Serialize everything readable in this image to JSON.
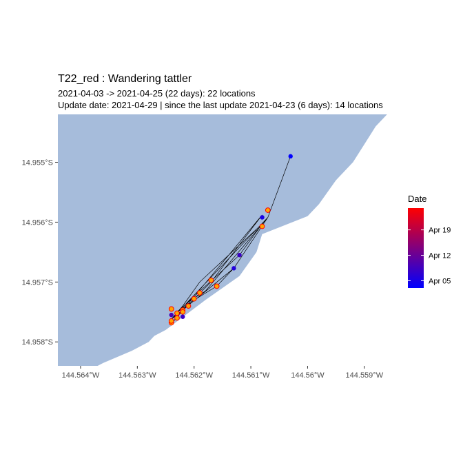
{
  "title": "T22_red  :  Wandering tattler",
  "subtitle_line1": "2021-04-03 -> 2021-04-25 (22 days): 22 locations",
  "subtitle_line2": "Update date: 2021-04-29 |  since the last update 2021-04-23 (6 days): 14 locations",
  "colors": {
    "land": "#a6bcdb",
    "track": "#000000",
    "recent_point_fill": "#ffa500",
    "recent_point_border": "#ff0000",
    "gradient_start": "#0000ff",
    "gradient_end": "#ff0000"
  },
  "chart_data": {
    "type": "scatter",
    "map": true,
    "x_label": "",
    "y_label": "",
    "xlim": [
      -144.5644,
      -144.5585
    ],
    "ylim": [
      -14.9584,
      -14.9542
    ],
    "x_ticks": [
      -144.564,
      -144.563,
      -144.562,
      -144.561,
      -144.56,
      -144.559
    ],
    "x_tick_labels": [
      "144.564°W",
      "144.563°W",
      "144.562°W",
      "144.561°W",
      "144.56°W",
      "144.559°W"
    ],
    "y_ticks": [
      -14.955,
      -14.956,
      -14.957,
      -14.958
    ],
    "y_tick_labels": [
      "14.955°S",
      "14.956°S",
      "14.957°S",
      "14.958°S"
    ],
    "grid": false,
    "coastline": [
      [
        -144.5644,
        -14.9584
      ],
      [
        -144.5637,
        -14.9584
      ],
      [
        -144.5636,
        -14.95835
      ],
      [
        -144.5631,
        -14.95815
      ],
      [
        -144.5628,
        -14.958
      ],
      [
        -144.5627,
        -14.9579
      ],
      [
        -144.5625,
        -14.9578
      ],
      [
        -144.5618,
        -14.9573
      ],
      [
        -144.5612,
        -14.9569
      ],
      [
        -144.5609,
        -14.9565
      ],
      [
        -144.5608,
        -14.9562
      ],
      [
        -144.56,
        -14.9559
      ],
      [
        -144.5598,
        -14.9557
      ],
      [
        -144.5595,
        -14.9553
      ],
      [
        -144.5592,
        -14.955
      ],
      [
        -144.559,
        -14.9547
      ],
      [
        -144.5588,
        -14.9544
      ],
      [
        -144.5586,
        -14.9542
      ],
      [
        -144.5644,
        -14.9542
      ]
    ],
    "track": [
      [
        -144.5603,
        -14.9549
      ],
      [
        -144.5607,
        -14.95592
      ],
      [
        -144.5613,
        -14.95677
      ],
      [
        -144.5616,
        -14.95707
      ],
      [
        -144.562,
        -14.9573
      ],
      [
        -144.5623,
        -14.9575
      ],
      [
        -144.5612,
        -14.95655
      ],
      [
        -144.5608,
        -14.95603
      ],
      [
        -144.5619,
        -14.957
      ],
      [
        -144.5622,
        -14.9574
      ],
      [
        -144.5624,
        -14.95762
      ],
      [
        -144.5607,
        -14.95592
      ],
      [
        -144.5618,
        -14.95715
      ],
      [
        -144.5621,
        -14.95733
      ],
      [
        -144.5623,
        -14.95758
      ],
      [
        -144.5624,
        -14.9577
      ],
      [
        -144.5608,
        -14.95588
      ],
      [
        -144.5617,
        -14.957
      ],
      [
        -144.562,
        -14.95728
      ],
      [
        -144.5622,
        -14.95748
      ],
      [
        -144.5624,
        -14.95762
      ],
      [
        -144.5613,
        -14.95677
      ]
    ],
    "points": [
      {
        "lon": -144.5603,
        "lat": -14.9549,
        "day": 3,
        "recent": false
      },
      {
        "lon": -144.5608,
        "lat": -14.95592,
        "day": 5,
        "recent": false
      },
      {
        "lon": -144.5613,
        "lat": -14.95677,
        "day": 6,
        "recent": false
      },
      {
        "lon": -144.5612,
        "lat": -14.95655,
        "day": 8,
        "recent": false
      },
      {
        "lon": -144.5623,
        "lat": -14.95755,
        "day": 7,
        "recent": false
      },
      {
        "lon": -144.5622,
        "lat": -14.95758,
        "day": 8,
        "recent": false
      },
      {
        "lon": -144.5624,
        "lat": -14.95765,
        "day": 4,
        "recent": false
      },
      {
        "lon": -144.5624,
        "lat": -14.95755,
        "day": 9,
        "recent": false
      },
      {
        "lon": -144.5607,
        "lat": -14.9558,
        "day": 20,
        "recent": true
      },
      {
        "lon": -144.5608,
        "lat": -14.95607,
        "day": 21,
        "recent": true
      },
      {
        "lon": -144.5616,
        "lat": -14.95707,
        "day": 22,
        "recent": true
      },
      {
        "lon": -144.5617,
        "lat": -14.95697,
        "day": 23,
        "recent": true
      },
      {
        "lon": -144.5619,
        "lat": -14.95718,
        "day": 23,
        "recent": true
      },
      {
        "lon": -144.562,
        "lat": -14.95728,
        "day": 24,
        "recent": true
      },
      {
        "lon": -144.5621,
        "lat": -14.9574,
        "day": 24,
        "recent": true
      },
      {
        "lon": -144.5622,
        "lat": -14.95747,
        "day": 24,
        "recent": true
      },
      {
        "lon": -144.5623,
        "lat": -14.95752,
        "day": 25,
        "recent": true
      },
      {
        "lon": -144.5624,
        "lat": -14.95745,
        "day": 25,
        "recent": true
      },
      {
        "lon": -144.5623,
        "lat": -14.9576,
        "day": 25,
        "recent": true
      },
      {
        "lon": -144.5624,
        "lat": -14.95768,
        "day": 25,
        "recent": true
      },
      {
        "lon": -144.5622,
        "lat": -14.9575,
        "day": 25,
        "recent": true
      },
      {
        "lon": -144.5624,
        "lat": -14.95765,
        "day": 25,
        "recent": true
      }
    ],
    "legend": {
      "title": "Date",
      "range_days": [
        3,
        25
      ],
      "ticks": [
        {
          "day": 5,
          "label": "Apr 05"
        },
        {
          "day": 12,
          "label": "Apr 12"
        },
        {
          "day": 19,
          "label": "Apr 19"
        }
      ],
      "placement": "right"
    }
  }
}
